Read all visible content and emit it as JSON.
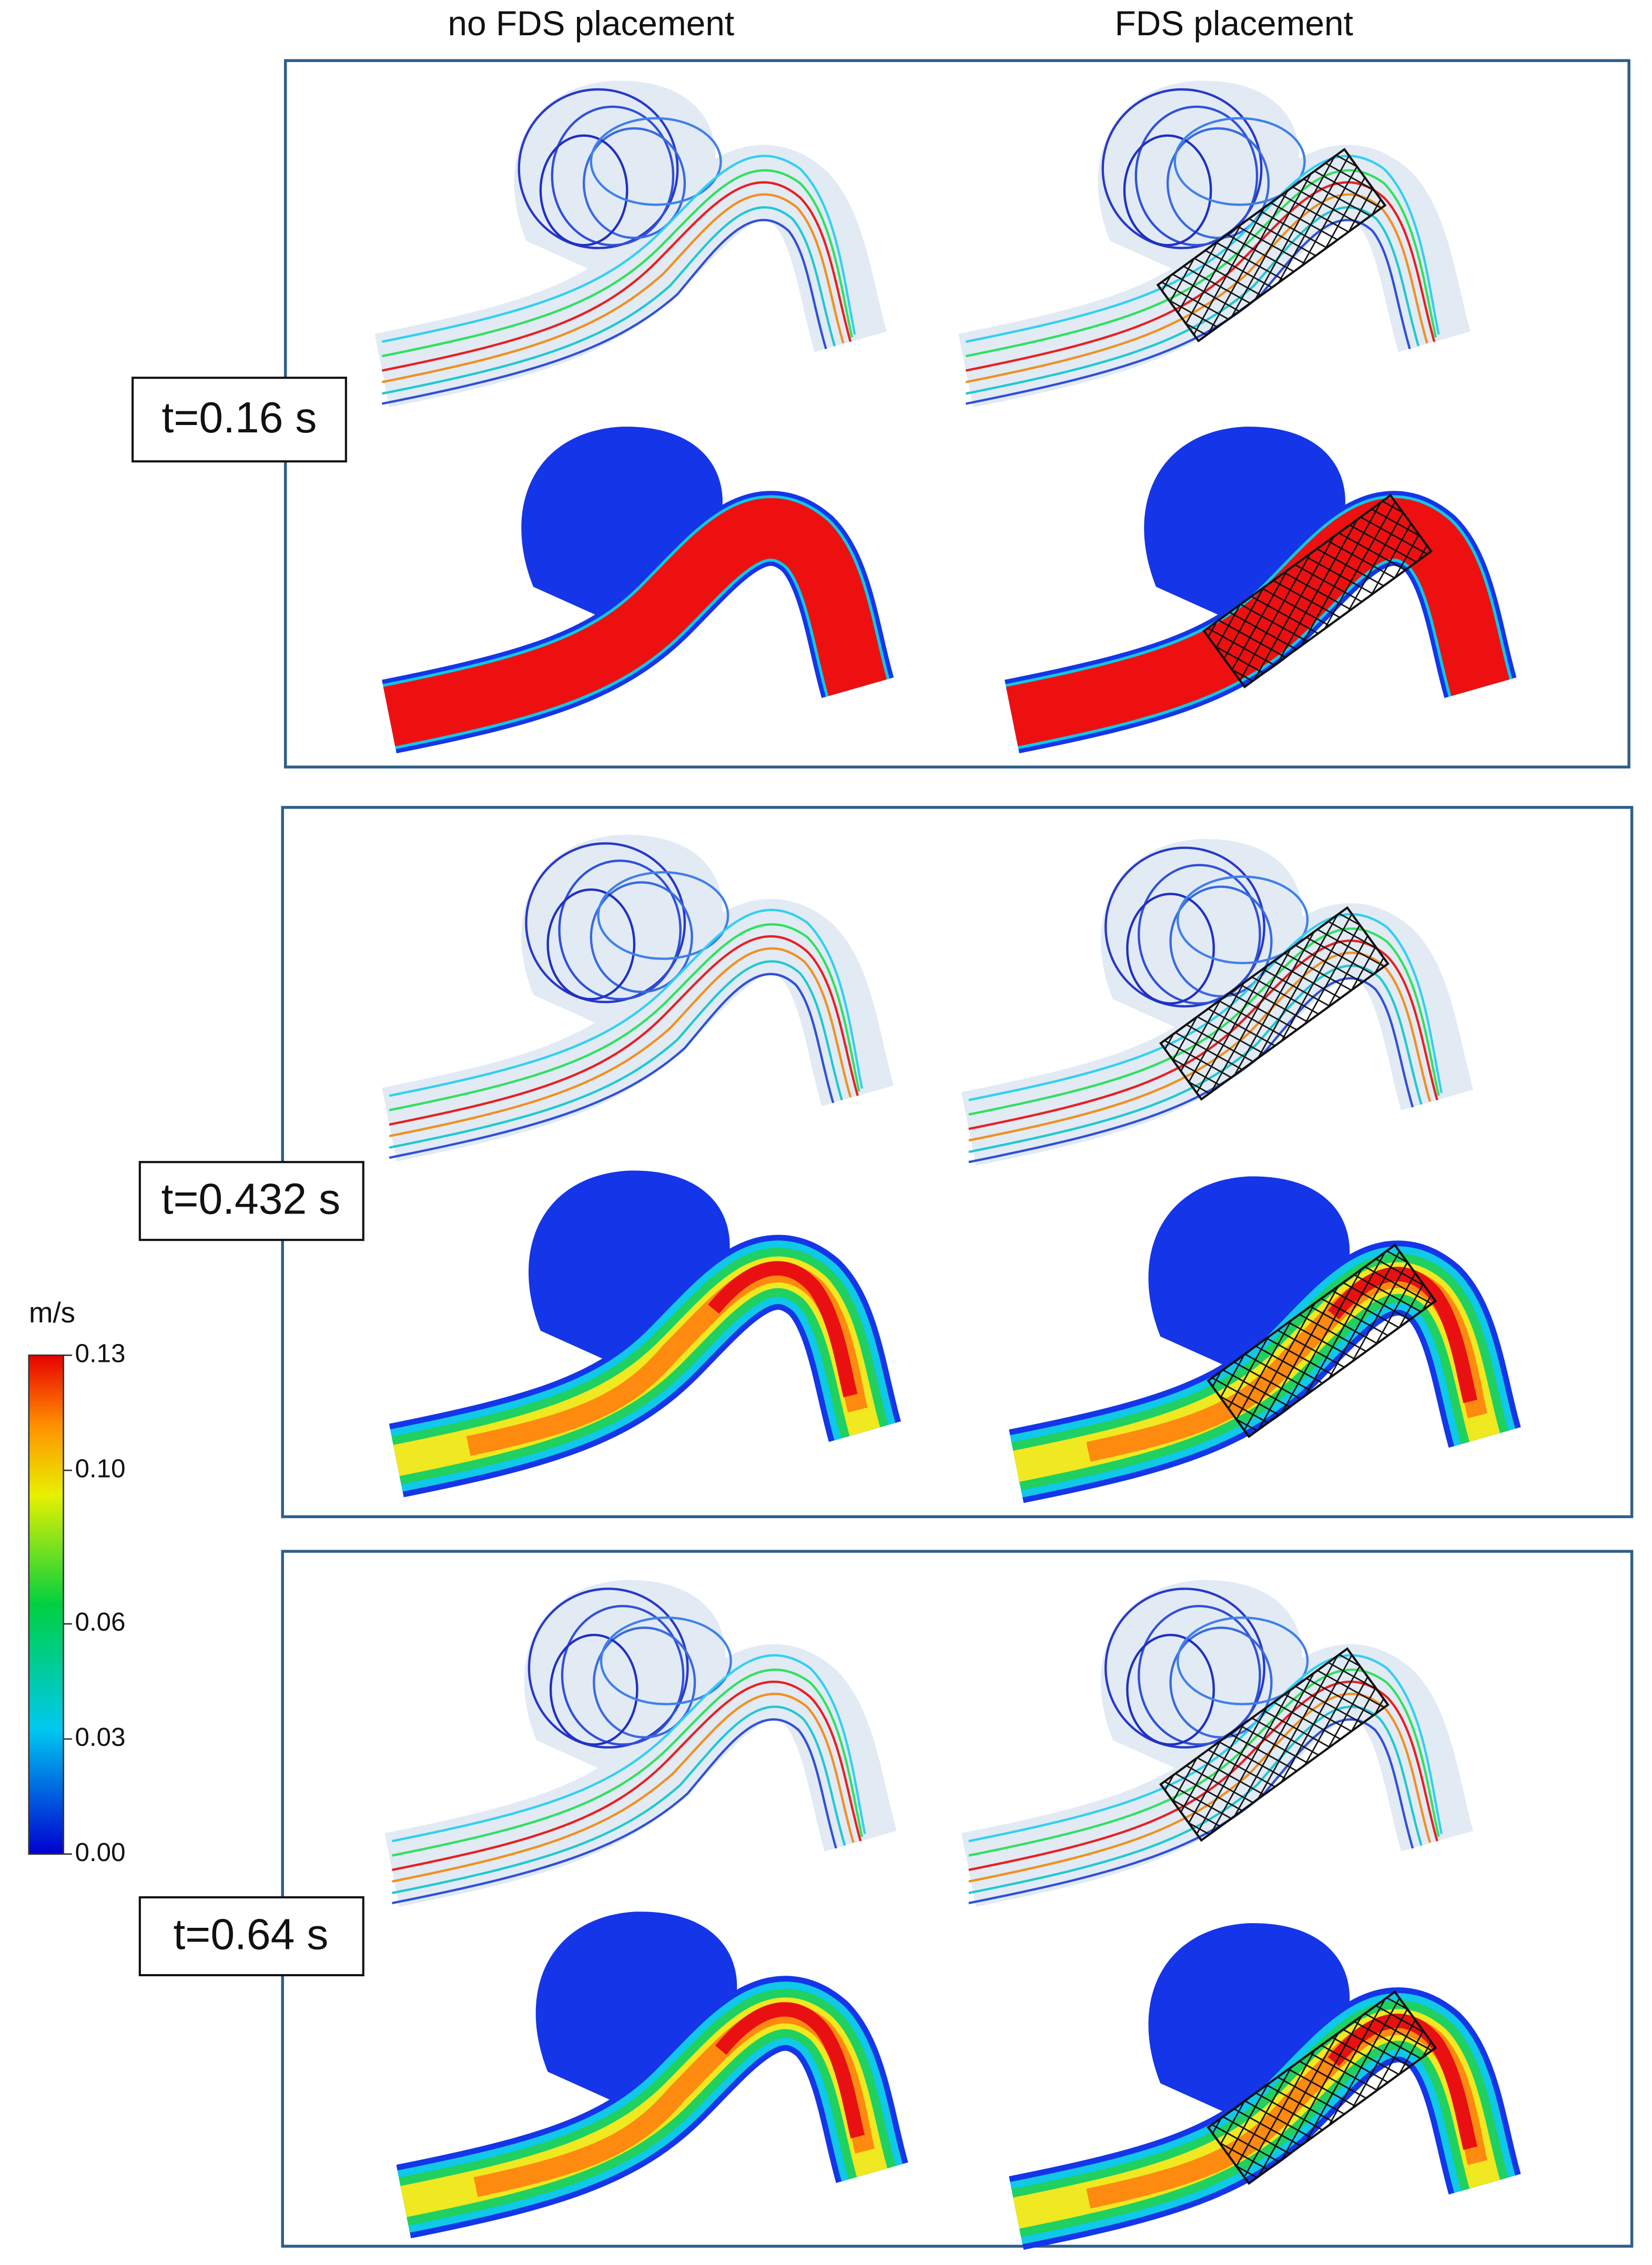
{
  "columns": [
    "no FDS placement",
    "FDS placement"
  ],
  "panels": [
    {
      "label": "t=0.16 s"
    },
    {
      "label": "t=0.432 s"
    },
    {
      "label": "t=0.64 s"
    }
  ],
  "colorbar": {
    "unit": "m/s",
    "lim": [
      0,
      0.13
    ],
    "ticks": [
      0.13,
      {
        "value": 0.1,
        "label": "0.10"
      },
      0.06,
      0.03,
      {
        "value": 0,
        "label": "0.00"
      }
    ]
  }
}
